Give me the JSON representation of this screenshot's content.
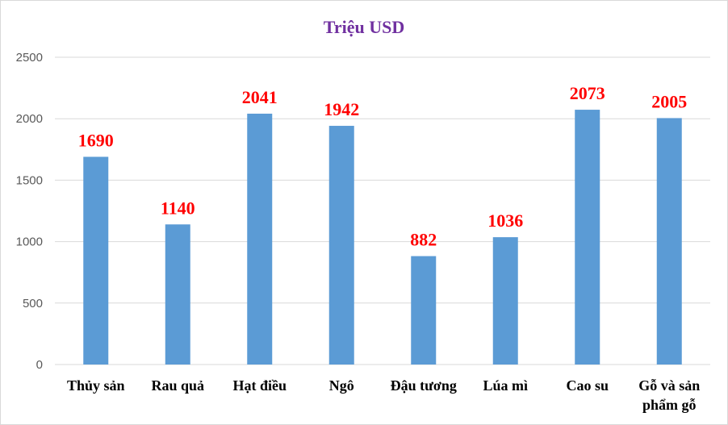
{
  "chart_data": {
    "type": "bar",
    "title": "Triệu USD",
    "categories": [
      [
        "Thủy sản"
      ],
      [
        "Rau quả"
      ],
      [
        "Hạt điều"
      ],
      [
        "Ngô"
      ],
      [
        "Đậu tương"
      ],
      [
        "Lúa mì"
      ],
      [
        "Cao su"
      ],
      [
        "Gỗ và sản",
        "phẩm gỗ"
      ]
    ],
    "values": [
      1690,
      1140,
      2041,
      1942,
      882,
      1036,
      2073,
      2005
    ],
    "data_labels": [
      "1690",
      "1140",
      "2041",
      "1942",
      "882",
      "1036",
      "2073",
      "2005"
    ],
    "ylim": [
      0,
      2500
    ],
    "y_ticks": [
      "0",
      "500",
      "1000",
      "1500",
      "2000",
      "2500"
    ],
    "grid": true,
    "legend": "none",
    "colors": {
      "bar": "#5b9bd5",
      "title": "#7030a0",
      "data_label": "#ff0000",
      "gridline": "#d9d9d9"
    }
  }
}
